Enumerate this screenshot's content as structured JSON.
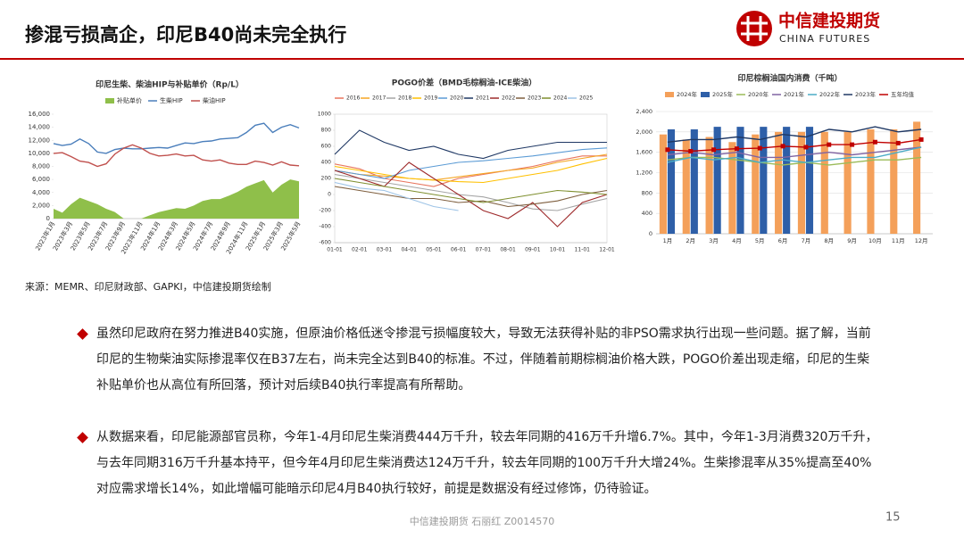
{
  "header": {
    "title": "掺混亏损高企，印尼B40尚未完全执行",
    "logo_cn": "中信建投期货",
    "logo_en": "CHINA FUTURES"
  },
  "chart_data": [
    {
      "type": "line",
      "title": "印尼生柴、柴油HIP与补贴单价（Rp/L）",
      "categories": [
        "2023年1月",
        null,
        "2023年3月",
        null,
        "2023年5月",
        null,
        "2023年7月",
        null,
        "2023年9月",
        null,
        "2023年11月",
        null,
        "2024年1月",
        null,
        "2024年3月",
        null,
        "2024年5月",
        null,
        "2024年7月",
        null,
        "2024年9月",
        null,
        "2024年11月",
        null,
        "2025年1月",
        null,
        "2025年3月",
        null,
        "2025年5月"
      ],
      "series": [
        {
          "name": "补贴单价",
          "type": "area",
          "color": "#8fbf4a",
          "values": [
            1500,
            900,
            2200,
            3200,
            2700,
            2200,
            1500,
            1000,
            0,
            0,
            0,
            500,
            1000,
            1300,
            1600,
            1500,
            2000,
            2700,
            3000,
            3000,
            3500,
            4100,
            4900,
            5400,
            5900,
            4000,
            5200,
            6000,
            5700
          ]
        },
        {
          "name": "生柴HIP",
          "color": "#4a7ebb",
          "values": [
            11500,
            11200,
            11400,
            12200,
            11500,
            10200,
            10000,
            10600,
            10800,
            10700,
            10700,
            10800,
            10900,
            10800,
            11200,
            11600,
            11500,
            11800,
            11900,
            12200,
            12300,
            12400,
            13200,
            14300,
            14600,
            13200,
            14000,
            14400,
            13900
          ]
        },
        {
          "name": "柴油HIP",
          "color": "#c0504d",
          "values": [
            10000,
            10100,
            9500,
            8800,
            8600,
            8000,
            8400,
            9900,
            10800,
            11300,
            10800,
            10000,
            9600,
            9700,
            9900,
            9600,
            9700,
            9000,
            8800,
            9000,
            8500,
            8300,
            8300,
            8800,
            8600,
            8200,
            8700,
            8200,
            8100
          ]
        }
      ],
      "ylim": [
        0,
        16000
      ],
      "yticks": [
        0,
        {
          "value": 2000,
          "label": "2,000"
        },
        {
          "value": 4000,
          "label": "4,000"
        },
        {
          "value": 6000,
          "label": "6,000"
        },
        {
          "value": 8000,
          "label": "8,000"
        },
        {
          "value": 10000,
          "label": "10,000"
        },
        {
          "value": 12000,
          "label": "12,000"
        },
        {
          "value": 14000,
          "label": "14,000"
        },
        {
          "value": 16000,
          "label": "16,000"
        }
      ],
      "grid": false
    },
    {
      "type": "line",
      "title": "POGO价差（BMD毛棕榈油-ICE柴油）",
      "categories": [
        "01-01",
        "02-01",
        "03-01",
        "04-01",
        "05-01",
        "06-01",
        "07-01",
        "08-01",
        "09-01",
        "10-01",
        "11-01",
        "12-01"
      ],
      "series": [
        {
          "name": "2016",
          "color": "#e8745c",
          "values": [
            380,
            320,
            200,
            150,
            100,
            200,
            250,
            300,
            350,
            420,
            480,
            480
          ]
        },
        {
          "name": "2017",
          "color": "#f5a623",
          "values": [
            300,
            250,
            230,
            200,
            180,
            220,
            260,
            300,
            330,
            400,
            450,
            500
          ]
        },
        {
          "name": "2018",
          "color": "#a5a5a5",
          "values": [
            250,
            200,
            150,
            100,
            50,
            0,
            -30,
            -100,
            -180,
            -200,
            -120,
            -50
          ]
        },
        {
          "name": "2019",
          "color": "#ffc000",
          "values": [
            350,
            300,
            250,
            200,
            180,
            160,
            150,
            200,
            250,
            300,
            380,
            450
          ]
        },
        {
          "name": "2020",
          "color": "#5b9bd5",
          "values": [
            300,
            250,
            200,
            300,
            350,
            400,
            420,
            450,
            480,
            520,
            560,
            580
          ]
        },
        {
          "name": "2021",
          "color": "#1f3864",
          "values": [
            500,
            800,
            650,
            550,
            600,
            500,
            450,
            550,
            600,
            650,
            650,
            650
          ]
        },
        {
          "name": "2022",
          "color": "#9e2a2b",
          "values": [
            300,
            200,
            100,
            400,
            200,
            0,
            -200,
            -300,
            -100,
            -400,
            -100,
            0
          ]
        },
        {
          "name": "2023",
          "color": "#7f5f3f",
          "values": [
            100,
            50,
            0,
            -50,
            -50,
            -100,
            -80,
            -150,
            -120,
            -80,
            0,
            50
          ]
        },
        {
          "name": "2024",
          "color": "#7f8f2f",
          "values": [
            200,
            150,
            100,
            50,
            0,
            -50,
            -100,
            -50,
            0,
            50,
            30,
            0
          ]
        },
        {
          "name": "2025",
          "color": "#9dc3e6",
          "values": [
            150,
            80,
            50,
            -50,
            -150,
            -200,
            null,
            null,
            null,
            null,
            null,
            null
          ]
        }
      ],
      "ylim": [
        -600,
        1000
      ],
      "yticks": [
        -600,
        -400,
        -200,
        0,
        200,
        400,
        600,
        800,
        1000
      ],
      "grid": false
    },
    {
      "type": "bar",
      "title": "印尼棕榈油国内消费（千吨）",
      "categories": [
        "1月",
        "2月",
        "3月",
        "4月",
        "5月",
        "6月",
        "7月",
        "8月",
        "9月",
        "10月",
        "11月",
        "12月"
      ],
      "series": [
        {
          "name": "2024年",
          "color": "#f4a05a",
          "values": [
            1950,
            1850,
            1900,
            1800,
            1950,
            2000,
            2000,
            2000,
            2000,
            2050,
            2050,
            2200
          ]
        },
        {
          "name": "2025年",
          "color": "#2e5fa8",
          "values": [
            2050,
            2050,
            2100,
            2100,
            2100,
            2100,
            2100,
            null,
            null,
            null,
            null,
            null
          ]
        },
        {
          "name": "2020年",
          "type": "line",
          "color": "#9bbb59",
          "values": [
            1450,
            1500,
            1500,
            1450,
            1400,
            1350,
            1400,
            1350,
            1400,
            1450,
            1450,
            1500
          ]
        },
        {
          "name": "2021年",
          "type": "line",
          "color": "#8064a2",
          "values": [
            1550,
            1600,
            1550,
            1600,
            1500,
            1500,
            1550,
            1600,
            1550,
            1600,
            1650,
            1700
          ]
        },
        {
          "name": "2022年",
          "type": "line",
          "color": "#4bacc6",
          "values": [
            1400,
            1500,
            1450,
            1500,
            1400,
            1450,
            1400,
            1450,
            1500,
            1500,
            1600,
            1700
          ]
        },
        {
          "name": "2023年",
          "type": "line",
          "color": "#1f3864",
          "values": [
            1800,
            1850,
            1850,
            1900,
            1850,
            1950,
            1900,
            2050,
            2000,
            2100,
            2000,
            2050
          ]
        },
        {
          "name": "五年均值",
          "type": "line",
          "marker": "square",
          "color": "#c00000",
          "values": [
            1650,
            1620,
            1650,
            1670,
            1680,
            1720,
            1700,
            1750,
            1750,
            1800,
            1780,
            1850
          ]
        }
      ],
      "ylim": [
        0,
        2400
      ],
      "yticks": [
        0,
        400,
        800,
        {
          "value": 1200,
          "label": "1,200"
        },
        {
          "value": 1600,
          "label": "1,600"
        },
        {
          "value": 2000,
          "label": "2,000"
        },
        {
          "value": 2400,
          "label": "2,400"
        }
      ],
      "grid": true
    }
  ],
  "source": "来源：MEMR、印尼财政部、GAPKI，中信建投期货绘制",
  "bullets": [
    "虽然印尼政府在努力推进B40实施，但原油价格低迷令掺混亏损幅度较大，导致无法获得补贴的非PSO需求执行出现一些问题。据了解，当前印尼的生物柴油实际掺混率仅在B37左右，尚未完全达到B40的标准。不过，伴随着前期棕榈油价格大跌，POGO价差出现走缩，印尼的生柴补贴单价也从高位有所回落，预计对后续B40执行率提高有所帮助。",
    "从数据来看，印尼能源部官员称，今年1-4月印尼生柴消费444万千升，较去年同期的416万千升增6.7%。其中，今年1-3月消费320万千升，与去年同期316万千升基本持平，但今年4月印尼生柴消费达124万千升，较去年同期的100万千升大增24%。生柴掺混率从35%提高至40%对应需求增长14%，如此增幅可能暗示印尼4月B40执行较好，前提是数据没有经过修饰，仍待验证。"
  ],
  "footer": {
    "author": "中信建投期货 石丽红 Z0014570",
    "page": "15"
  }
}
